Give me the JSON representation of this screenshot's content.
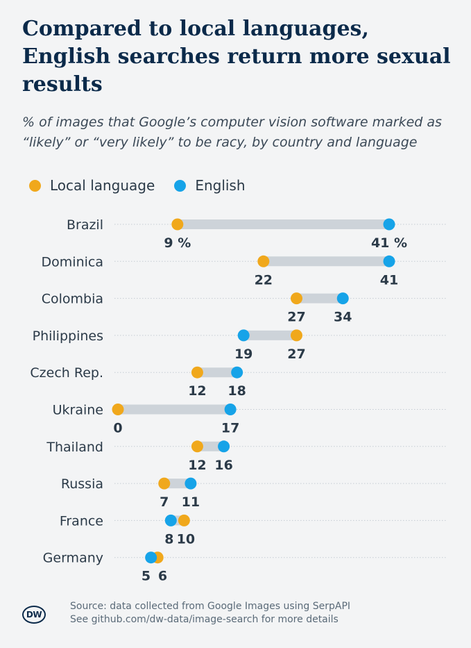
{
  "title": "Compared to local languages, English searches return more sexual results",
  "subtitle": "% of images that Google’s computer vision software marked as “likely” or “very likely” to be racy, by country and language",
  "legend": {
    "local": "Local language",
    "english": "English"
  },
  "colors": {
    "local": "#f0a81c",
    "english": "#16a3e8",
    "bar": "#cdd3d9"
  },
  "chart_data": {
    "type": "dumbbell",
    "unit": "%",
    "series": [
      {
        "name": "Local language"
      },
      {
        "name": "English"
      }
    ],
    "rows": [
      {
        "country": "Brazil",
        "local": 9,
        "english": 41,
        "local_label": "9 %",
        "english_label": "41 %"
      },
      {
        "country": "Dominica",
        "local": 22,
        "english": 41,
        "local_label": "22",
        "english_label": "41"
      },
      {
        "country": "Colombia",
        "local": 27,
        "english": 34,
        "local_label": "27",
        "english_label": "34"
      },
      {
        "country": "Philippines",
        "local": 27,
        "english": 19,
        "local_label": "27",
        "english_label": "19"
      },
      {
        "country": "Czech Rep.",
        "local": 12,
        "english": 18,
        "local_label": "12",
        "english_label": "18"
      },
      {
        "country": "Ukraine",
        "local": 0,
        "english": 17,
        "local_label": "0",
        "english_label": "17"
      },
      {
        "country": "Thailand",
        "local": 12,
        "english": 16,
        "local_label": "12",
        "english_label": "16"
      },
      {
        "country": "Russia",
        "local": 7,
        "english": 11,
        "local_label": "7",
        "english_label": "11"
      },
      {
        "country": "France",
        "local": 10,
        "english": 8,
        "local_label": "10",
        "english_label": "8"
      },
      {
        "country": "Germany",
        "local": 6,
        "english": 5,
        "local_label": "6",
        "english_label": "5"
      }
    ],
    "xlim": [
      0,
      41
    ]
  },
  "footer": {
    "logo": "DW",
    "source_line1": "Source: data collected from Google Images using SerpAPI",
    "source_line2": "See github.com/dw-data/image-search for more details"
  }
}
